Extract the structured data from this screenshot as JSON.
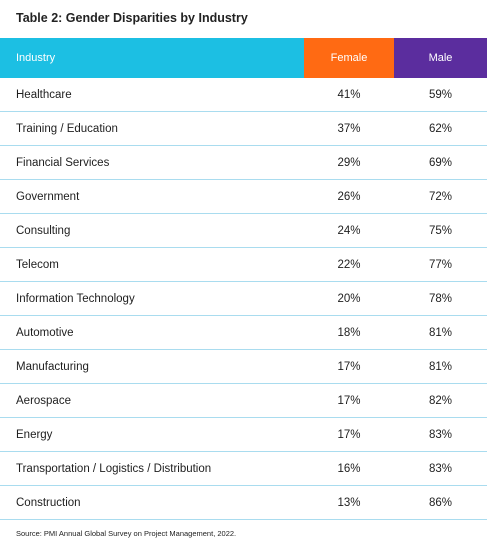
{
  "title": "Table 2: Gender Disparities by Industry",
  "table": {
    "headers": {
      "industry": "Industry",
      "female": "Female",
      "male": "Male"
    },
    "rows": [
      {
        "industry": "Healthcare",
        "female": "41%",
        "male": "59%"
      },
      {
        "industry": "Training / Education",
        "female": "37%",
        "male": "62%"
      },
      {
        "industry": "Financial Services",
        "female": "29%",
        "male": "69%"
      },
      {
        "industry": "Government",
        "female": "26%",
        "male": "72%"
      },
      {
        "industry": "Consulting",
        "female": "24%",
        "male": "75%"
      },
      {
        "industry": "Telecom",
        "female": "22%",
        "male": "77%"
      },
      {
        "industry": "Information Technology",
        "female": "20%",
        "male": "78%"
      },
      {
        "industry": "Automotive",
        "female": "18%",
        "male": "81%"
      },
      {
        "industry": "Manufacturing",
        "female": "17%",
        "male": "81%"
      },
      {
        "industry": "Aerospace",
        "female": "17%",
        "male": "82%"
      },
      {
        "industry": "Energy",
        "female": "17%",
        "male": "83%"
      },
      {
        "industry": "Transportation / Logistics / Distribution",
        "female": "16%",
        "male": "83%"
      },
      {
        "industry": "Construction",
        "female": "13%",
        "male": "86%"
      }
    ]
  },
  "source": "Source: PMI Annual Global Survey on Project Management, 2022.",
  "colors": {
    "industry_header": "#1cbfe3",
    "female_header": "#ff6a13",
    "male_header": "#5b2d9e",
    "row_divider": "#a9dcef"
  }
}
